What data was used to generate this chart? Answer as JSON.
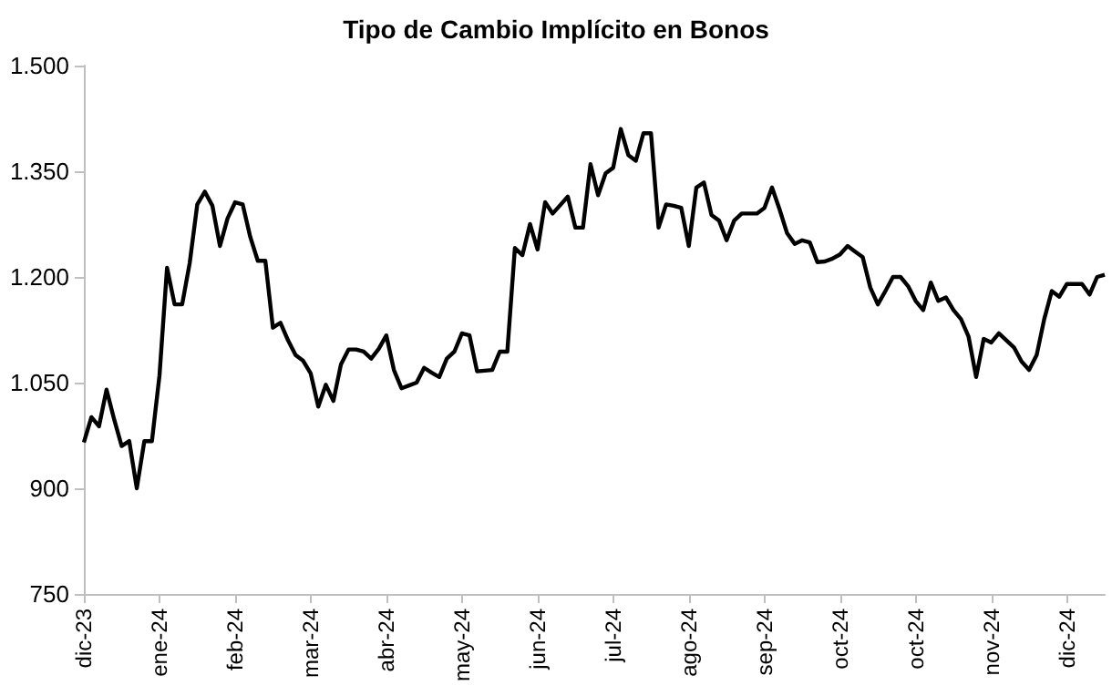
{
  "chart_data": {
    "type": "line",
    "title": "Tipo de Cambio Implícito en Bonos",
    "grid": false,
    "marker": "none",
    "line_style": "solid",
    "categories": [
      "dic-23",
      null,
      null,
      null,
      null,
      null,
      null,
      null,
      null,
      null,
      "ene-24",
      null,
      null,
      null,
      null,
      null,
      null,
      null,
      null,
      null,
      "feb-24",
      null,
      null,
      null,
      null,
      null,
      null,
      null,
      null,
      null,
      "mar-24",
      null,
      null,
      null,
      null,
      null,
      null,
      null,
      null,
      null,
      "abr-24",
      null,
      null,
      null,
      null,
      null,
      null,
      null,
      null,
      null,
      "may-24",
      null,
      null,
      null,
      null,
      null,
      null,
      null,
      null,
      null,
      "jun-24",
      null,
      null,
      null,
      null,
      null,
      null,
      null,
      null,
      null,
      "jul-24",
      null,
      null,
      null,
      null,
      null,
      null,
      null,
      null,
      null,
      "ago-24",
      null,
      null,
      null,
      null,
      null,
      null,
      null,
      null,
      null,
      "sep-24",
      null,
      null,
      null,
      null,
      null,
      null,
      null,
      null,
      null,
      "oct-24",
      null,
      null,
      null,
      null,
      null,
      null,
      null,
      null,
      null,
      "oct-24",
      null,
      null,
      null,
      null,
      null,
      null,
      null,
      null,
      null,
      "nov-24",
      null,
      null,
      null,
      null,
      null,
      null,
      null,
      null,
      null,
      "dic-24",
      null,
      null,
      null,
      null,
      null
    ],
    "ylim": [
      750,
      1500
    ],
    "yticks": [
      {
        "value": 750,
        "label": "750"
      },
      {
        "value": 900,
        "label": "900"
      },
      {
        "value": 1050,
        "label": "1.050"
      },
      {
        "value": 1200,
        "label": "1.200"
      },
      {
        "value": 1350,
        "label": "1.350"
      },
      {
        "value": 1500,
        "label": "1.500"
      }
    ],
    "series": [
      {
        "color": "#000000",
        "values": [
          965,
          1001,
          988,
          1040,
          998,
          960,
          967,
          900,
          967,
          967,
          1060,
          1213,
          1161,
          1161,
          1220,
          1303,
          1321,
          1301,
          1244,
          1283,
          1306,
          1303,
          1257,
          1223,
          1223,
          1128,
          1135,
          1110,
          1089,
          1081,
          1063,
          1016,
          1047,
          1024,
          1076,
          1097,
          1097,
          1094,
          1084,
          1098,
          1117,
          1068,
          1042,
          1046,
          1050,
          1071,
          1064,
          1058,
          1084,
          1094,
          1120,
          1117,
          1066,
          1067,
          1068,
          1094,
          1094,
          1241,
          1231,
          1275,
          1239,
          1306,
          1290,
          1302,
          1314,
          1270,
          1270,
          1360,
          1316,
          1347,
          1355,
          1410,
          1373,
          1365,
          1404,
          1404,
          1270,
          1303,
          1301,
          1298,
          1244,
          1327,
          1334,
          1288,
          1280,
          1252,
          1280,
          1290,
          1290,
          1290,
          1298,
          1327,
          1296,
          1262,
          1247,
          1252,
          1249,
          1221,
          1222,
          1226,
          1232,
          1244,
          1236,
          1228,
          1185,
          1161,
          1180,
          1200,
          1200,
          1187,
          1166,
          1153,
          1192,
          1166,
          1171,
          1153,
          1140,
          1115,
          1058,
          1112,
          1107,
          1120,
          1110,
          1100,
          1080,
          1068,
          1089,
          1140,
          1180,
          1172,
          1190,
          1190,
          1190,
          1175,
          1200,
          1203
        ]
      }
    ]
  }
}
